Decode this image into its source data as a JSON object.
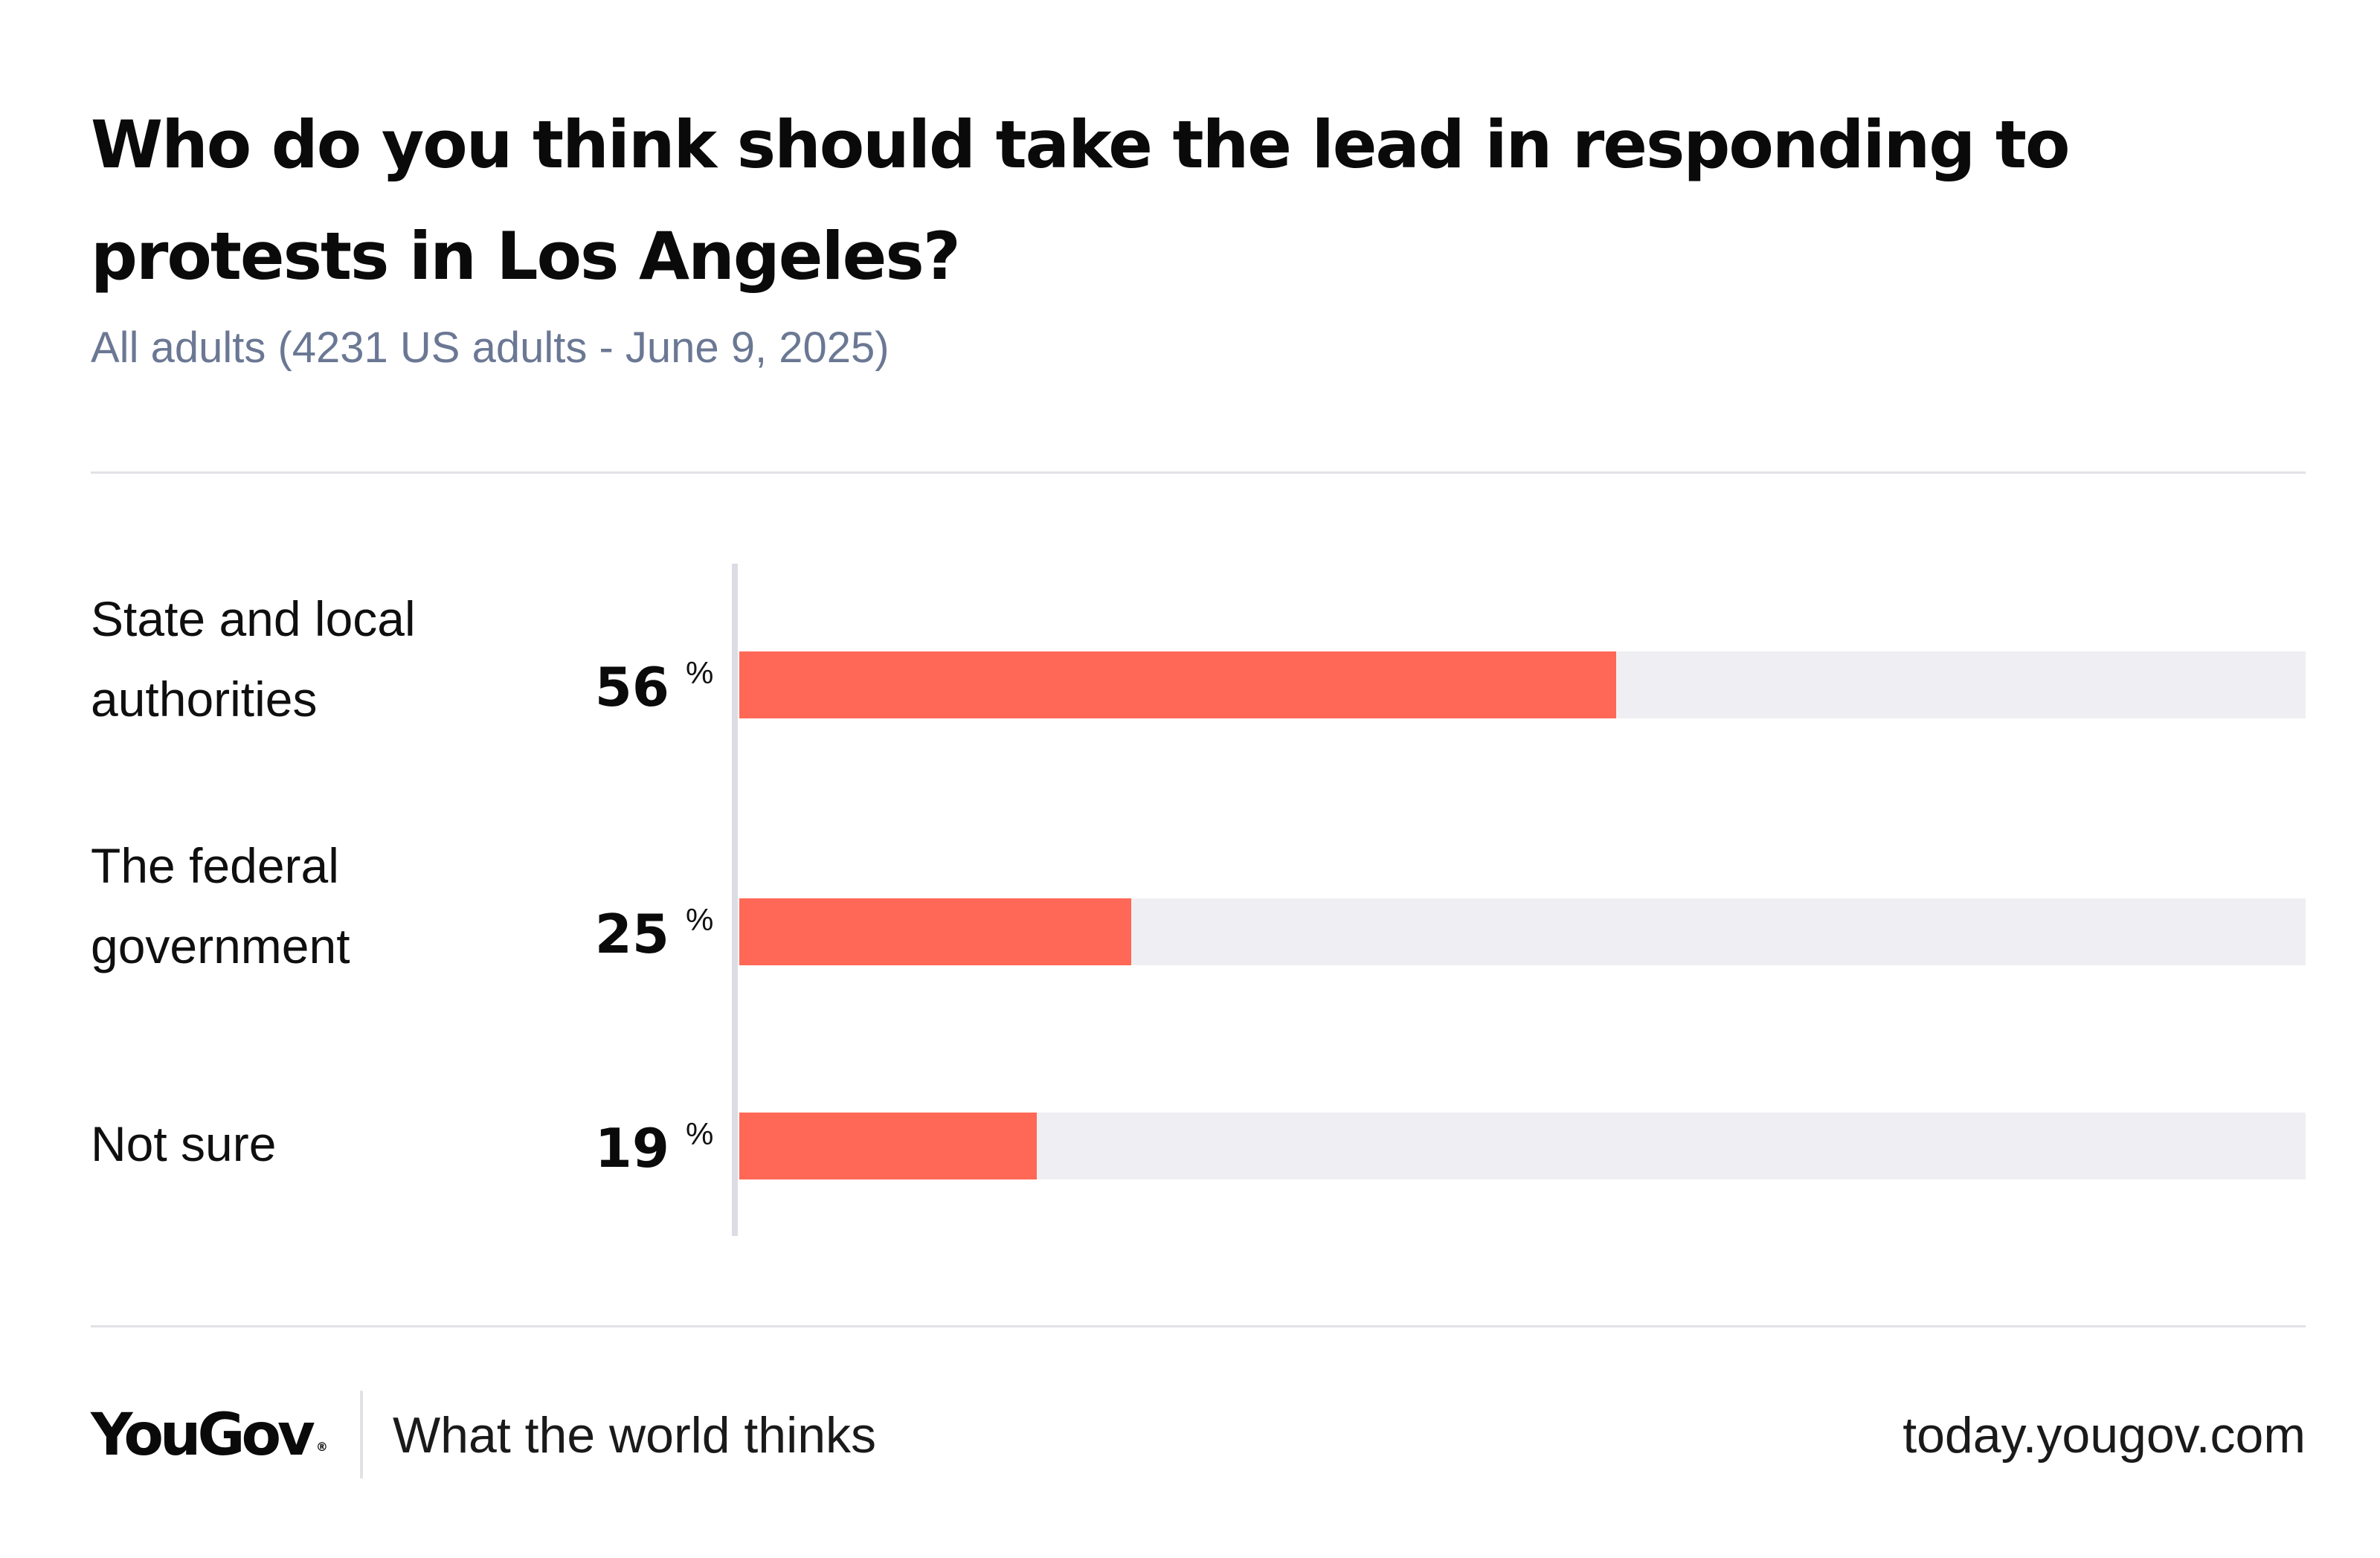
{
  "header": {
    "title": "Who do you think should take the lead in responding to protests in Los Angeles?",
    "subtitle": "All adults (4231 US adults - June 9, 2025)"
  },
  "chart_data": {
    "type": "bar",
    "orientation": "horizontal",
    "title": "Who do you think should take the lead in responding to protests in Los Angeles?",
    "subtitle": "All adults (4231 US adults - June 9, 2025)",
    "categories": [
      "State and local authorities",
      "The federal government",
      "Not sure"
    ],
    "category_lines": [
      [
        "State and local",
        "authorities"
      ],
      [
        "The federal",
        "government"
      ],
      [
        "Not sure"
      ]
    ],
    "values": [
      56,
      25,
      19
    ],
    "value_labels": [
      "56",
      "25",
      "19"
    ],
    "unit": "%",
    "xlim": [
      0,
      100
    ],
    "grid": false,
    "legend": "none",
    "bar_color": "#ff6856",
    "track_color": "#efeff3"
  },
  "footer": {
    "brand": "YouGov",
    "brand_mark": "®",
    "tagline": "What the world thinks",
    "url": "today.yougov.com"
  },
  "colors": {
    "bar": "#ff6856",
    "track": "#efeff3",
    "subtitle": "#6b7894",
    "divider": "#e2e2e6",
    "axis": "#dcdce4"
  }
}
